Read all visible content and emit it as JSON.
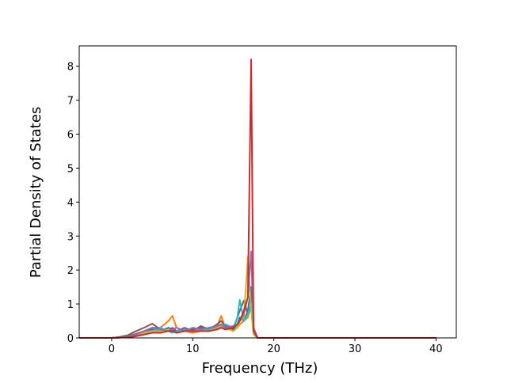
{
  "chart_data": {
    "type": "line",
    "xlabel": "Frequency (THz)",
    "ylabel": "Partial Density of States",
    "x": [
      -4,
      0,
      1,
      2,
      3,
      4,
      5,
      6,
      7,
      7.5,
      8,
      9,
      10,
      11,
      12,
      13,
      13.5,
      14,
      15,
      15.5,
      15.8,
      16.3,
      16.8,
      17.2,
      17.5,
      18,
      20,
      40
    ],
    "series": [
      {
        "color": "#1f77b4",
        "values": [
          0,
          0,
          0.02,
          0.05,
          0.12,
          0.2,
          0.25,
          0.2,
          0.3,
          0.25,
          0.15,
          0.2,
          0.25,
          0.3,
          0.2,
          0.3,
          0.4,
          0.3,
          0.25,
          0.4,
          0.6,
          0.5,
          0.8,
          1.5,
          0.3,
          0,
          0,
          0
        ]
      },
      {
        "color": "#ff7f0e",
        "values": [
          0,
          0,
          0.02,
          0.05,
          0.1,
          0.2,
          0.3,
          0.3,
          0.5,
          0.65,
          0.3,
          0.2,
          0.15,
          0.2,
          0.25,
          0.35,
          0.65,
          0.3,
          0.2,
          0.3,
          0.4,
          0.5,
          0.6,
          1.0,
          0.2,
          0,
          0,
          0
        ]
      },
      {
        "color": "#8c564b",
        "values": [
          0,
          0,
          0.03,
          0.08,
          0.2,
          0.3,
          0.42,
          0.25,
          0.2,
          0.3,
          0.2,
          0.3,
          0.2,
          0.35,
          0.25,
          0.4,
          0.5,
          0.35,
          0.25,
          0.6,
          0.8,
          1.1,
          0.7,
          0.9,
          0.2,
          0,
          0,
          0
        ]
      },
      {
        "color": "#17becf",
        "values": [
          0,
          0,
          0.01,
          0.04,
          0.1,
          0.15,
          0.2,
          0.3,
          0.2,
          0.15,
          0.2,
          0.25,
          0.2,
          0.2,
          0.25,
          0.3,
          0.3,
          0.4,
          0.3,
          0.6,
          1.12,
          0.5,
          0.7,
          1.0,
          0.1,
          0,
          0,
          0
        ]
      },
      {
        "color": "#bcbd22",
        "values": [
          0,
          0,
          0.01,
          0.03,
          0.08,
          0.15,
          0.2,
          0.2,
          0.25,
          0.2,
          0.15,
          0.2,
          0.2,
          0.25,
          0.2,
          0.3,
          0.35,
          0.3,
          0.2,
          0.3,
          0.5,
          0.6,
          2.4,
          0.8,
          0.1,
          0,
          0,
          0
        ]
      },
      {
        "color": "#9467bd",
        "values": [
          0,
          0,
          0.01,
          0.03,
          0.1,
          0.2,
          0.3,
          0.25,
          0.2,
          0.25,
          0.3,
          0.2,
          0.3,
          0.25,
          0.3,
          0.35,
          0.4,
          0.3,
          0.35,
          0.4,
          0.5,
          0.7,
          1.2,
          2.55,
          0.3,
          0,
          0,
          0
        ]
      },
      {
        "color": "#d62728",
        "values": [
          0,
          0,
          0.01,
          0.02,
          0.05,
          0.1,
          0.15,
          0.15,
          0.2,
          0.2,
          0.15,
          0.2,
          0.2,
          0.2,
          0.2,
          0.25,
          0.3,
          0.25,
          0.3,
          0.4,
          0.5,
          0.8,
          1.2,
          8.2,
          0.2,
          0,
          0,
          0
        ]
      }
    ],
    "xlim": [
      -4.0,
      42.5
    ],
    "xticks": [
      0,
      10,
      20,
      30,
      40
    ],
    "ylim": [
      0,
      8.6
    ],
    "yticks": [
      0,
      1,
      2,
      3,
      4,
      5,
      6,
      7,
      8
    ]
  }
}
